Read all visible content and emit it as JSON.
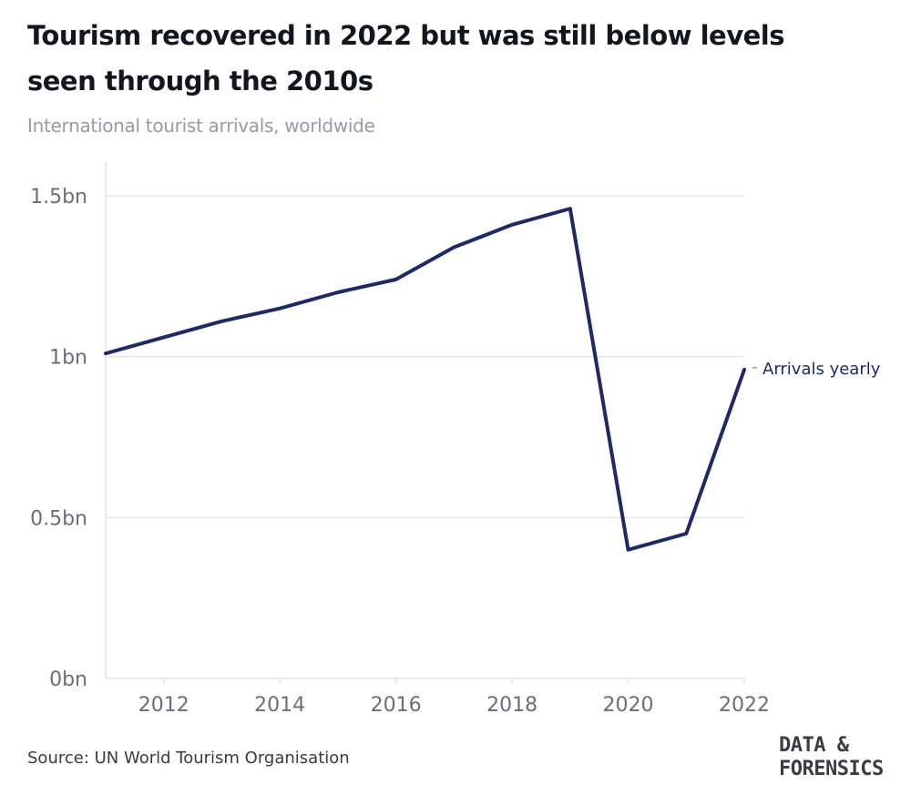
{
  "title": "Tourism recovered in 2022 but was still below levels seen through the 2010s",
  "subtitle": "International tourist arrivals, worldwide",
  "source": "Source: UN World Tourism Organisation",
  "logo": {
    "line1": "DATA &",
    "line2": "FORENSICS"
  },
  "colors": {
    "line": "#1e2a66",
    "grid": "#e3e3ea",
    "axis_text": "#6d6d78"
  },
  "chart_data": {
    "type": "line",
    "x": [
      2011,
      2012,
      2013,
      2014,
      2015,
      2016,
      2017,
      2018,
      2019,
      2020,
      2021,
      2022
    ],
    "series": [
      {
        "name": "Arrivals yearly",
        "values": [
          1.01,
          1.06,
          1.11,
          1.15,
          1.2,
          1.24,
          1.34,
          1.41,
          1.46,
          0.4,
          0.45,
          0.96
        ]
      }
    ],
    "xlim": [
      2011,
      2022
    ],
    "ylim": [
      0,
      1.5
    ],
    "xticks": [
      2012,
      2014,
      2016,
      2018,
      2020,
      2022
    ],
    "xtick_labels": [
      "2012",
      "2014",
      "2016",
      "2018",
      "2020",
      "2022"
    ],
    "yticks": [
      0,
      0.5,
      1,
      1.5
    ],
    "ytick_labels": [
      "0bn",
      "0.5bn",
      "1bn",
      "1.5bn"
    ],
    "grid": "horizontal",
    "legend": "direct label at line end"
  }
}
